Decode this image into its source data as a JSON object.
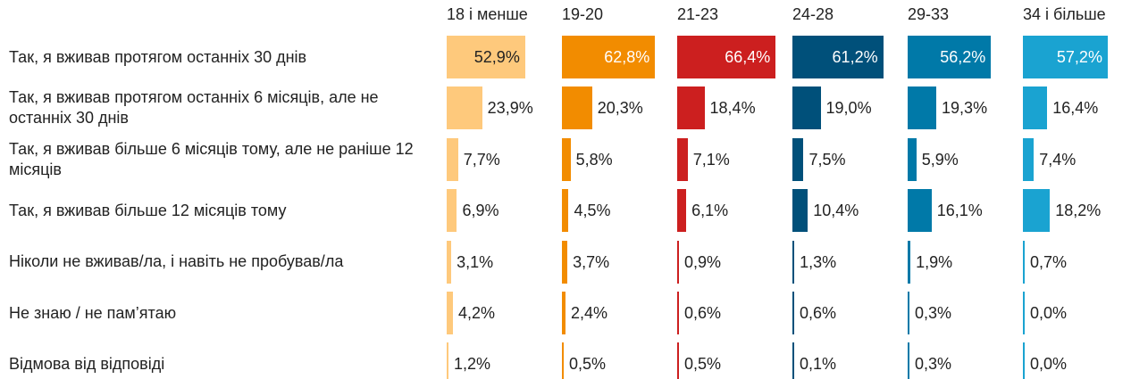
{
  "chart_data": {
    "type": "bar",
    "categories": [
      "Так, я вживав протягом останніх 30 днів",
      "Так, я вживав протягом останніх 6 місяців, але не останніх 30 днів",
      "Так, я вживав більше 6 місяців тому, але не раніше 12 місяців",
      "Так, я вживав більше 12 місяців тому",
      "Ніколи не вживав/ла, і навіть не пробував/ла",
      "Не знаю / не пам’ятаю",
      "Відмова від відповіді"
    ],
    "series": [
      {
        "name": "18 і менше",
        "color": "#fec97c",
        "label_color": "#222222",
        "values": [
          52.9,
          23.9,
          7.7,
          6.9,
          3.1,
          4.2,
          1.2
        ],
        "value_labels": [
          "52,9%",
          "23,9%",
          "7,7%",
          "6,9%",
          "3,1%",
          "4,2%",
          "1,2%"
        ]
      },
      {
        "name": "19-20",
        "color": "#f28c00",
        "label_color": "#ffffff",
        "values": [
          62.8,
          20.3,
          5.8,
          4.5,
          3.7,
          2.4,
          0.5
        ],
        "value_labels": [
          "62,8%",
          "20,3%",
          "5,8%",
          "4,5%",
          "3,7%",
          "2,4%",
          "0,5%"
        ]
      },
      {
        "name": "21-23",
        "color": "#cc1f1f",
        "label_color": "#ffffff",
        "values": [
          66.4,
          18.4,
          7.1,
          6.1,
          0.9,
          0.6,
          0.5
        ],
        "value_labels": [
          "66,4%",
          "18,4%",
          "7,1%",
          "6,1%",
          "0,9%",
          "0,6%",
          "0,5%"
        ]
      },
      {
        "name": "24-28",
        "color": "#00507a",
        "label_color": "#ffffff",
        "values": [
          61.2,
          19.0,
          7.5,
          10.4,
          1.3,
          0.6,
          0.1
        ],
        "value_labels": [
          "61,2%",
          "19,0%",
          "7,5%",
          "10,4%",
          "1,3%",
          "0,6%",
          "0,1%"
        ]
      },
      {
        "name": "29-33",
        "color": "#0079a8",
        "label_color": "#ffffff",
        "values": [
          56.2,
          19.3,
          5.9,
          16.1,
          1.9,
          0.3,
          0.3
        ],
        "value_labels": [
          "56,2%",
          "19,3%",
          "5,9%",
          "16,1%",
          "1,9%",
          "0,3%",
          "0,3%"
        ]
      },
      {
        "name": "34 і більше",
        "color": "#1aa3d1",
        "label_color": "#ffffff",
        "values": [
          57.2,
          16.4,
          7.4,
          18.2,
          0.7,
          0.0,
          0.0
        ],
        "value_labels": [
          "57,2%",
          "16,4%",
          "7,4%",
          "18,2%",
          "0,7%",
          "0,0%",
          "0,0%"
        ]
      }
    ]
  }
}
